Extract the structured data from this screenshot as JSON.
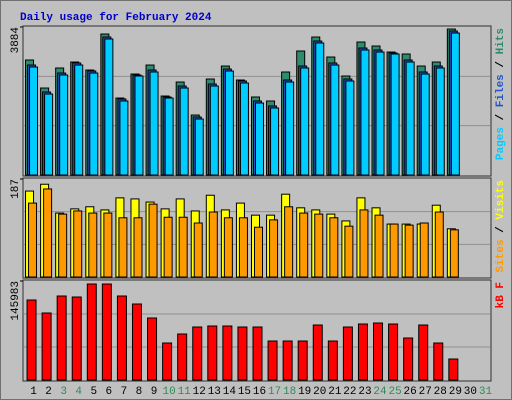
{
  "chart_data": [
    {
      "type": "bar",
      "title": "Daily usage for February 2024",
      "ylim": [
        0,
        3884
      ],
      "yticks": [
        3884
      ],
      "legend_separator": " / ",
      "series": [
        {
          "name": "Hits",
          "color": "#2e8b6b",
          "values": [
            3018,
            2283,
            2808,
            2965,
            2755,
            3700,
            2020,
            2650,
            2886,
            2073,
            2440,
            1574,
            2519,
            2860,
            2493,
            2047,
            1942,
            2703,
            3254,
            3621,
            3096,
            2598,
            3490,
            3385,
            3227,
            3175,
            2860,
            2965,
            3831,
            null,
            null
          ]
        },
        {
          "name": "Files",
          "color": "#2255cc",
          "values": [
            2886,
            2178,
            2676,
            2939,
            2729,
            3621,
            1994,
            2624,
            2755,
            2047,
            2335,
            1522,
            2388,
            2781,
            2467,
            1942,
            1811,
            2493,
            2860,
            3516,
            2939,
            2519,
            3332,
            3280,
            3201,
            3018,
            2703,
            2860,
            3779,
            null,
            null
          ]
        },
        {
          "name": "Pages",
          "color": "#00ccff",
          "values": [
            2834,
            2125,
            2624,
            2886,
            2676,
            3569,
            1942,
            2598,
            2703,
            2020,
            2283,
            1469,
            2335,
            2729,
            2414,
            1889,
            1758,
            2440,
            2808,
            3464,
            2886,
            2467,
            3280,
            3227,
            3175,
            2965,
            2650,
            2808,
            3726,
            null,
            null
          ]
        }
      ]
    },
    {
      "type": "bar",
      "ylim": [
        0,
        187
      ],
      "yticks": [
        187
      ],
      "legend_separator": " / ",
      "series": [
        {
          "name": "Visits",
          "color": "#ffff00",
          "values": [
            164,
            177,
            122,
            130,
            134,
            128,
            151,
            149,
            143,
            130,
            149,
            126,
            156,
            128,
            141,
            118,
            118,
            158,
            132,
            128,
            120,
            107,
            151,
            132,
            101,
            101,
            101,
            137,
            92,
            null,
            null
          ]
        },
        {
          "name": "Sites",
          "color": "#ff9900",
          "values": [
            141,
            168,
            120,
            126,
            122,
            122,
            113,
            113,
            139,
            114,
            114,
            103,
            124,
            113,
            113,
            95,
            109,
            134,
            122,
            120,
            113,
            97,
            128,
            118,
            101,
            99,
            103,
            124,
            90,
            null,
            null
          ]
        }
      ]
    },
    {
      "type": "bar",
      "ylim": [
        0,
        145983
      ],
      "yticks": [
        145983
      ],
      "categories": [
        "1",
        "2",
        "3",
        "4",
        "5",
        "6",
        "7",
        "8",
        "9",
        "10",
        "11",
        "12",
        "13",
        "14",
        "15",
        "16",
        "17",
        "18",
        "19",
        "20",
        "21",
        "22",
        "23",
        "24",
        "25",
        "26",
        "27",
        "28",
        "29",
        "30",
        "31"
      ],
      "category_colors": [
        "#000",
        "#000",
        "#2e8b57",
        "#2e8b57",
        "#000",
        "#000",
        "#000",
        "#000",
        "#000",
        "#2e8b57",
        "#2e8b57",
        "#000",
        "#000",
        "#000",
        "#000",
        "#000",
        "#2e8b57",
        "#2e8b57",
        "#000",
        "#000",
        "#000",
        "#000",
        "#000",
        "#2e8b57",
        "#2e8b57",
        "#000",
        "#000",
        "#000",
        "#000",
        "#000",
        "#2e8b57"
      ],
      "series": [
        {
          "name": "kB F",
          "color": "#ff0000",
          "values": [
            117968,
            98800,
            123866,
            122392,
            141562,
            141562,
            123866,
            112070,
            91425,
            54560,
            67832,
            78154,
            79628,
            79628,
            78154,
            78154,
            57509,
            57509,
            57509,
            81103,
            57509,
            78154,
            82578,
            84052,
            82578,
            61933,
            81103,
            54560,
            30967,
            null,
            null
          ]
        }
      ]
    }
  ]
}
